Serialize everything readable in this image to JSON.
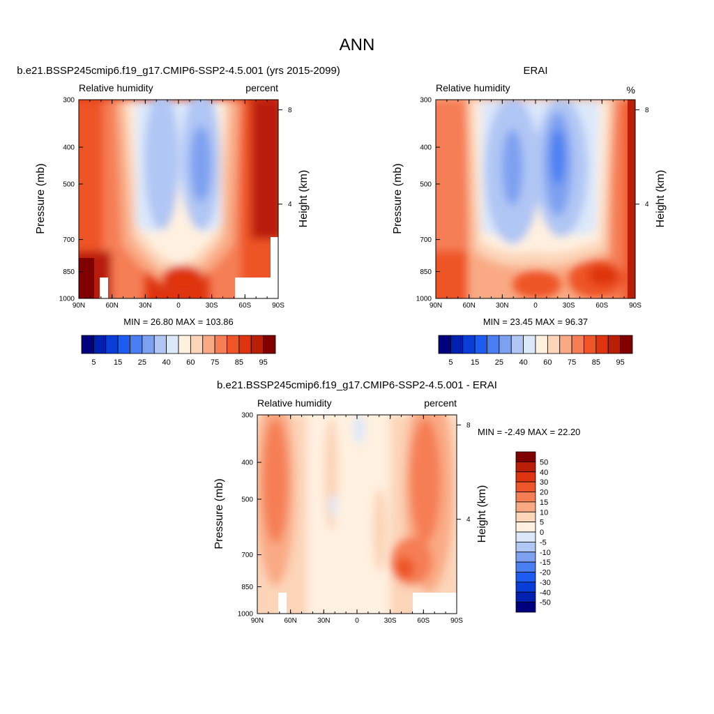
{
  "main_title": "ANN",
  "panels": [
    {
      "id": "model",
      "title": "b.e21.BSSP245cmip6.f19_g17.CMIP6-SSP2-4.5.001 (yrs 2015-2099)",
      "left_label": "Relative humidity",
      "right_label": "percent",
      "ylabel": "Pressure (mb)",
      "ylabel_right": "Height (km)",
      "stats": "MIN =  26.80  MAX = 103.86"
    },
    {
      "id": "obs",
      "title": "ERAI",
      "left_label": "Relative humidity",
      "right_label": "%",
      "ylabel": "Pressure (mb)",
      "ylabel_right": "Height (km)",
      "stats": "MIN =  23.45  MAX =  96.37"
    },
    {
      "id": "diff",
      "title": "b.e21.BSSP245cmip6.f19_g17.CMIP6-SSP2-4.5.001 - ERAI",
      "left_label": "Relative humidity",
      "right_label": "percent",
      "ylabel": "Pressure (mb)",
      "ylabel_right": "Height (km)",
      "stats": "MIN =  -2.49  MAX =  22.20"
    }
  ],
  "chart_data": [
    {
      "type": "heatmap",
      "panel": "model",
      "x_ticks": [
        "90N",
        "60N",
        "30N",
        "0",
        "30S",
        "60S",
        "90S"
      ],
      "x_values": [
        90,
        60,
        30,
        0,
        -30,
        -60,
        -90
      ],
      "y_ticks": [
        300,
        400,
        500,
        700,
        850,
        1000
      ],
      "y_log_scale": true,
      "y_range": [
        300,
        1000
      ],
      "height_ticks_km": [
        8,
        4
      ],
      "colorbar": {
        "orientation": "horizontal",
        "levels_shown": [
          "5",
          "15",
          "25",
          "40",
          "60",
          "75",
          "85",
          "95"
        ],
        "colors": [
          "#00007f",
          "#0020b0",
          "#0a3ed8",
          "#1c5cf0",
          "#4a7ff2",
          "#7ea0f0",
          "#b0c6f4",
          "#dce8fa",
          "#fff0e0",
          "#fcd4b8",
          "#f9aa85",
          "#f57e55",
          "#ee5528",
          "#de3410",
          "#b91f08",
          "#800000"
        ]
      },
      "stats": {
        "min": 26.8,
        "max": 103.86
      }
    },
    {
      "type": "heatmap",
      "panel": "obs",
      "x_ticks": [
        "90N",
        "60N",
        "30N",
        "0",
        "30S",
        "60S",
        "90S"
      ],
      "x_values": [
        90,
        60,
        30,
        0,
        -30,
        -60,
        -90
      ],
      "y_ticks": [
        300,
        400,
        500,
        700,
        850,
        1000
      ],
      "y_log_scale": true,
      "y_range": [
        300,
        1000
      ],
      "height_ticks_km": [
        8,
        4
      ],
      "colorbar": {
        "orientation": "horizontal",
        "levels_shown": [
          "5",
          "15",
          "25",
          "40",
          "60",
          "75",
          "85",
          "95"
        ],
        "colors": [
          "#00007f",
          "#0020b0",
          "#0a3ed8",
          "#1c5cf0",
          "#4a7ff2",
          "#7ea0f0",
          "#b0c6f4",
          "#dce8fa",
          "#fff0e0",
          "#fcd4b8",
          "#f9aa85",
          "#f57e55",
          "#ee5528",
          "#de3410",
          "#b91f08",
          "#800000"
        ]
      },
      "stats": {
        "min": 23.45,
        "max": 96.37
      }
    },
    {
      "type": "heatmap",
      "panel": "diff",
      "x_ticks": [
        "90N",
        "60N",
        "30N",
        "0",
        "30S",
        "60S",
        "90S"
      ],
      "x_values": [
        90,
        60,
        30,
        0,
        -30,
        -60,
        -90
      ],
      "y_ticks": [
        300,
        400,
        500,
        700,
        850,
        1000
      ],
      "y_log_scale": true,
      "y_range": [
        300,
        1000
      ],
      "height_ticks_km": [
        8,
        4
      ],
      "colorbar": {
        "orientation": "vertical",
        "levels_shown": [
          "50",
          "40",
          "30",
          "20",
          "15",
          "10",
          "5",
          "0",
          "-5",
          "-10",
          "-15",
          "-20",
          "-30",
          "-40",
          "-50"
        ],
        "colors": [
          "#800000",
          "#b91f08",
          "#de3410",
          "#ee5528",
          "#f57e55",
          "#f9aa85",
          "#fcd4b8",
          "#fff0e0",
          "#dce8fa",
          "#b0c6f4",
          "#7ea0f0",
          "#4a7ff2",
          "#1c5cf0",
          "#0a3ed8",
          "#0020b0",
          "#00007f"
        ]
      },
      "stats": {
        "min": -2.49,
        "max": 22.2
      }
    }
  ]
}
